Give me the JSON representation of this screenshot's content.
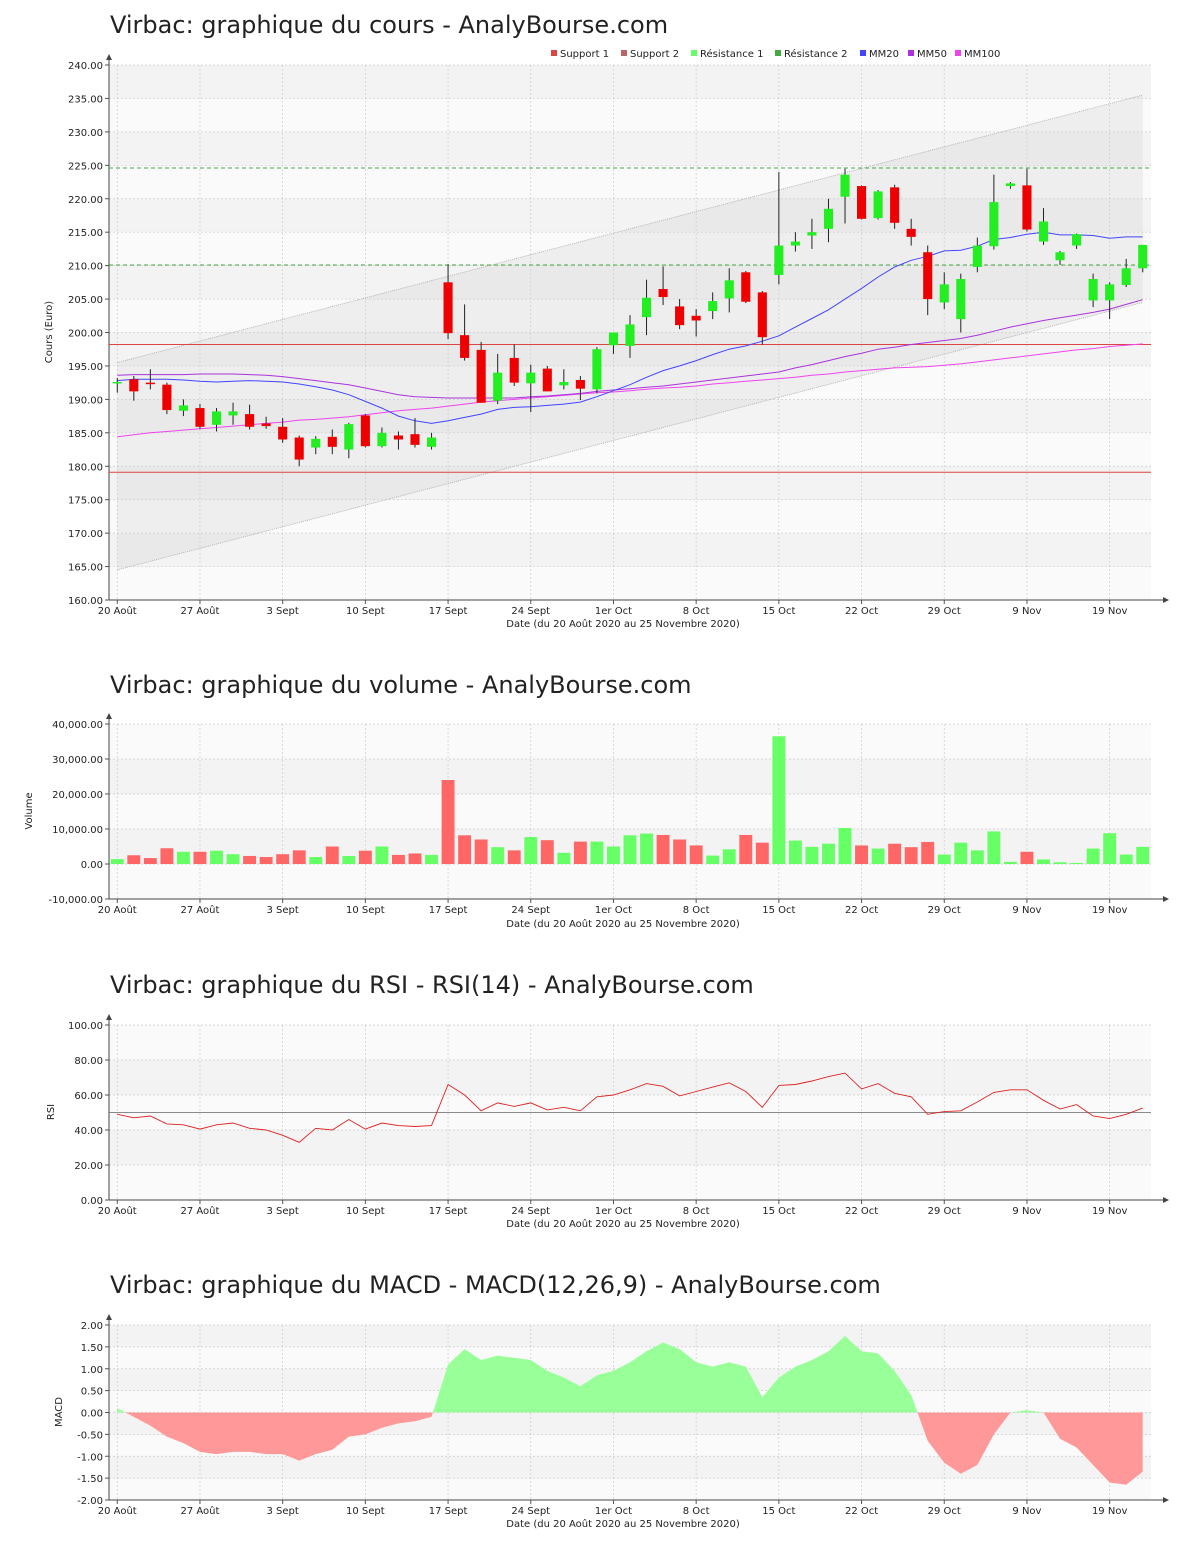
{
  "colors": {
    "up": "#22ee22",
    "down": "#ee0000",
    "up_vol": "#66ff66",
    "down_vol": "#ff6666",
    "mm20": "#4444ff",
    "mm50": "#aa33dd",
    "mm100": "#ee44ee",
    "support": "#dd4444",
    "resistance": "#44aa44",
    "rsi": "#dd2222",
    "macd_pos": "#99ff99",
    "macd_neg": "#ff9999",
    "channel": "#aaaaaa"
  },
  "x_ticks": [
    "20 Août",
    "27 Août",
    "3 Sept",
    "10 Sept",
    "17 Sept",
    "24 Sept",
    "1er Oct",
    "8 Oct",
    "15 Oct",
    "22 Oct",
    "29 Oct",
    "9 Nov",
    "19 Nov"
  ],
  "x_axis_label": "Date (du 20 Août 2020 au 25 Novembre 2020)",
  "chart_data": [
    {
      "type": "candlestick",
      "title": "Virbac: graphique du cours - AnalyBourse.com",
      "ylabel": "Cours (Euro)",
      "ylim": [
        160,
        240
      ],
      "yticks": [
        "160.00",
        "165.00",
        "170.00",
        "175.00",
        "180.00",
        "185.00",
        "190.00",
        "195.00",
        "200.00",
        "205.00",
        "210.00",
        "215.00",
        "220.00",
        "225.00",
        "230.00",
        "235.00",
        "240.00"
      ],
      "legend": [
        "Support 1",
        "Support 2",
        "Résistance 1",
        "Résistance 2",
        "MM20",
        "MM50",
        "MM100"
      ],
      "support_levels": [
        198.2,
        179.1
      ],
      "resistance_levels": [
        224.6,
        210.1
      ],
      "channel": {
        "upper": [
          [
            0,
            195.5
          ],
          [
            62,
            235.5
          ]
        ],
        "lower": [
          [
            0,
            164.5
          ],
          [
            62,
            204.5
          ]
        ]
      },
      "ohlc": [
        [
          192.4,
          193.2,
          191.0,
          192.6
        ],
        [
          193.0,
          193.5,
          189.8,
          191.2
        ],
        [
          192.5,
          194.5,
          191.5,
          192.3
        ],
        [
          192.2,
          192.5,
          187.8,
          188.4
        ],
        [
          188.3,
          190.0,
          187.5,
          189.1
        ],
        [
          188.7,
          189.3,
          185.6,
          185.9
        ],
        [
          186.2,
          188.7,
          185.2,
          188.2
        ],
        [
          187.6,
          189.5,
          186.2,
          188.2
        ],
        [
          187.8,
          189.2,
          185.5,
          185.9
        ],
        [
          186.4,
          187.4,
          185.6,
          186.0
        ],
        [
          185.9,
          187.2,
          183.5,
          184.0
        ],
        [
          184.3,
          184.6,
          180.0,
          181.0
        ],
        [
          182.8,
          184.5,
          181.8,
          184.1
        ],
        [
          184.4,
          185.5,
          181.8,
          182.9
        ],
        [
          182.5,
          186.5,
          181.2,
          186.3
        ],
        [
          187.6,
          187.8,
          182.8,
          183.0
        ],
        [
          183.0,
          185.8,
          182.8,
          185.0
        ],
        [
          184.6,
          185.2,
          182.5,
          184.0
        ],
        [
          184.8,
          187.2,
          182.8,
          183.2
        ],
        [
          182.9,
          185.0,
          182.5,
          184.3
        ],
        [
          207.5,
          210.2,
          199.0,
          199.9
        ],
        [
          199.6,
          204.2,
          195.8,
          196.2
        ],
        [
          197.4,
          198.6,
          189.5,
          189.5
        ],
        [
          189.8,
          196.8,
          189.3,
          194.0
        ],
        [
          196.2,
          198.2,
          192.0,
          192.5
        ],
        [
          192.4,
          195.2,
          188.1,
          194.0
        ],
        [
          194.6,
          195.0,
          191.2,
          191.2
        ],
        [
          192.1,
          194.5,
          191.5,
          192.6
        ],
        [
          192.9,
          193.5,
          189.9,
          191.6
        ],
        [
          191.5,
          197.8,
          190.9,
          197.5
        ],
        [
          198.1,
          200.0,
          196.8,
          200.0
        ],
        [
          198.0,
          202.6,
          196.2,
          201.2
        ],
        [
          202.3,
          207.9,
          199.6,
          205.2
        ],
        [
          206.5,
          209.9,
          204.1,
          205.3
        ],
        [
          203.9,
          205.0,
          200.5,
          201.1
        ],
        [
          202.5,
          203.5,
          199.4,
          201.8
        ],
        [
          203.2,
          206.0,
          202.0,
          204.7
        ],
        [
          205.1,
          209.6,
          203.0,
          207.8
        ],
        [
          209.0,
          209.2,
          204.4,
          204.6
        ],
        [
          206.0,
          206.2,
          198.2,
          199.3
        ],
        [
          208.6,
          224.0,
          207.2,
          213.0
        ],
        [
          213.0,
          215.0,
          212.1,
          213.6
        ],
        [
          214.5,
          217.0,
          212.5,
          215.0
        ],
        [
          215.5,
          220.0,
          213.5,
          218.5
        ],
        [
          220.3,
          224.5,
          216.3,
          223.6
        ],
        [
          221.9,
          222.0,
          216.9,
          217.0
        ],
        [
          217.1,
          221.3,
          216.9,
          221.1
        ],
        [
          221.7,
          222.1,
          215.5,
          216.4
        ],
        [
          215.5,
          217.0,
          213.0,
          214.3
        ],
        [
          212.0,
          213.0,
          202.6,
          205.0
        ],
        [
          204.5,
          209.0,
          203.5,
          207.2
        ],
        [
          202.0,
          208.8,
          200.0,
          208.0
        ],
        [
          209.8,
          214.2,
          209.0,
          213.0
        ],
        [
          212.9,
          223.6,
          212.4,
          219.5
        ],
        [
          221.9,
          222.5,
          221.5,
          222.3
        ],
        [
          222.0,
          224.5,
          215.1,
          215.4
        ],
        [
          213.6,
          218.6,
          213.1,
          216.6
        ],
        [
          210.8,
          212.2,
          210.1,
          212.0
        ],
        [
          213.0,
          214.8,
          212.5,
          214.7
        ],
        [
          204.8,
          208.8,
          203.8,
          208.0
        ],
        [
          204.8,
          207.5,
          202.0,
          207.2
        ],
        [
          207.1,
          211.0,
          206.8,
          209.6
        ],
        [
          209.6,
          213.1,
          209.0,
          213.1
        ]
      ],
      "mm20": [
        192.8,
        193.0,
        193.0,
        193.0,
        192.9,
        192.7,
        192.6,
        192.7,
        192.8,
        192.7,
        192.6,
        192.3,
        191.9,
        191.4,
        190.7,
        189.7,
        188.7,
        187.5,
        186.8,
        186.4,
        186.8,
        187.3,
        187.8,
        188.5,
        188.8,
        188.9,
        189.1,
        189.3,
        189.6,
        190.4,
        191.3,
        192.2,
        193.3,
        194.3,
        195.0,
        195.8,
        196.7,
        197.5,
        198.0,
        198.7,
        199.5,
        200.8,
        202.1,
        203.4,
        205.0,
        206.6,
        208.3,
        209.8,
        210.8,
        211.4,
        212.2,
        212.3,
        212.9,
        213.9,
        214.2,
        214.7,
        215.0,
        214.6,
        214.6,
        214.5,
        214.1,
        214.3,
        214.3
      ],
      "mm50": [
        193.6,
        193.7,
        193.7,
        193.7,
        193.7,
        193.8,
        193.8,
        193.8,
        193.7,
        193.6,
        193.4,
        193.1,
        192.8,
        192.5,
        192.2,
        191.7,
        191.2,
        190.7,
        190.4,
        190.3,
        190.2,
        190.2,
        190.2,
        190.2,
        190.2,
        190.4,
        190.5,
        190.7,
        190.9,
        191.2,
        191.4,
        191.6,
        191.8,
        192.0,
        192.3,
        192.6,
        192.9,
        193.2,
        193.5,
        193.8,
        194.1,
        194.7,
        195.2,
        195.8,
        196.4,
        196.9,
        197.5,
        197.8,
        198.2,
        198.5,
        198.8,
        199.1,
        199.6,
        200.2,
        200.8,
        201.3,
        201.8,
        202.2,
        202.6,
        203.0,
        203.5,
        204.2,
        204.9
      ],
      "mm100": [
        184.4,
        184.7,
        185.0,
        185.2,
        185.4,
        185.6,
        185.8,
        186.0,
        186.2,
        186.4,
        186.6,
        186.9,
        187.0,
        187.2,
        187.4,
        187.7,
        188.0,
        188.3,
        188.5,
        188.7,
        189.0,
        189.3,
        189.6,
        189.8,
        190.0,
        190.2,
        190.4,
        190.6,
        190.8,
        191.0,
        191.1,
        191.3,
        191.5,
        191.7,
        191.8,
        192.0,
        192.3,
        192.5,
        192.7,
        192.9,
        193.1,
        193.3,
        193.6,
        193.8,
        194.1,
        194.3,
        194.5,
        194.7,
        194.8,
        194.9,
        195.1,
        195.3,
        195.6,
        195.9,
        196.2,
        196.5,
        196.8,
        197.1,
        197.4,
        197.6,
        197.9,
        198.1,
        198.3
      ]
    },
    {
      "type": "bar",
      "title": "Virbac: graphique du volume - AnalyBourse.com",
      "ylabel": "Volume",
      "ylim": [
        -10000,
        40000
      ],
      "yticks": [
        "-10,000.00",
        "0.00",
        "10,000.00",
        "20,000.00",
        "30,000.00",
        "40,000.00"
      ],
      "values": [
        1400,
        2500,
        1700,
        4500,
        3500,
        3500,
        3800,
        2800,
        2300,
        2000,
        2800,
        3900,
        2000,
        5000,
        2300,
        3800,
        5000,
        2600,
        3000,
        2600,
        24000,
        8200,
        7000,
        4800,
        3900,
        7700,
        6800,
        3200,
        6400,
        6400,
        5000,
        8200,
        8700,
        8300,
        7000,
        5300,
        2400,
        4200,
        8300,
        6100,
        36500,
        6700,
        4900,
        5800,
        10300,
        5300,
        4400,
        5800,
        4800,
        6300,
        2700,
        6100,
        3900,
        9300,
        600,
        3500,
        1300,
        500,
        300,
        4400,
        8800,
        2700,
        4900
      ]
    },
    {
      "type": "line",
      "title": "Virbac: graphique du RSI - RSI(14) - AnalyBourse.com",
      "ylabel": "RSI",
      "ylim": [
        0,
        100
      ],
      "yticks": [
        "0.00",
        "20.00",
        "40.00",
        "60.00",
        "80.00",
        "100.00"
      ],
      "reference": 50,
      "values": [
        49.0,
        47.0,
        48.0,
        43.5,
        43.0,
        40.5,
        43.0,
        44.0,
        41.0,
        40.0,
        37.0,
        33.0,
        41.0,
        40.0,
        46.0,
        40.5,
        44.0,
        42.5,
        42.0,
        42.5,
        66.0,
        60.0,
        51.0,
        55.5,
        53.5,
        55.5,
        51.5,
        53.0,
        51.0,
        59.0,
        60.0,
        63.0,
        66.5,
        65.0,
        59.5,
        62.0,
        64.5,
        67.0,
        62.0,
        53.0,
        65.5,
        66.0,
        68.0,
        70.5,
        72.5,
        63.5,
        66.5,
        61.0,
        59.0,
        49.0,
        50.5,
        51.0,
        56.0,
        61.5,
        63.0,
        63.0,
        57.0,
        52.0,
        54.5,
        48.0,
        46.5,
        49.0,
        52.5
      ]
    },
    {
      "type": "area",
      "title": "Virbac: graphique du MACD - MACD(12,26,9) - AnalyBourse.com",
      "ylabel": "MACD",
      "ylim": [
        -2.0,
        2.0
      ],
      "yticks": [
        "-2.00",
        "-1.50",
        "-1.00",
        "-0.50",
        "0.00",
        "0.50",
        "1.00",
        "1.50",
        "2.00"
      ],
      "values": [
        0.1,
        -0.1,
        -0.3,
        -0.55,
        -0.7,
        -0.9,
        -0.95,
        -0.9,
        -0.9,
        -0.95,
        -0.95,
        -1.1,
        -0.95,
        -0.85,
        -0.55,
        -0.5,
        -0.35,
        -0.25,
        -0.2,
        -0.1,
        1.1,
        1.45,
        1.2,
        1.3,
        1.25,
        1.2,
        0.95,
        0.8,
        0.6,
        0.85,
        0.95,
        1.15,
        1.4,
        1.6,
        1.45,
        1.15,
        1.05,
        1.15,
        1.05,
        0.35,
        0.8,
        1.05,
        1.2,
        1.4,
        1.75,
        1.4,
        1.35,
        0.95,
        0.4,
        -0.65,
        -1.15,
        -1.4,
        -1.2,
        -0.5,
        0.0,
        0.05,
        0.0,
        -0.6,
        -0.8,
        -1.2,
        -1.6,
        -1.65,
        -1.35
      ]
    }
  ]
}
